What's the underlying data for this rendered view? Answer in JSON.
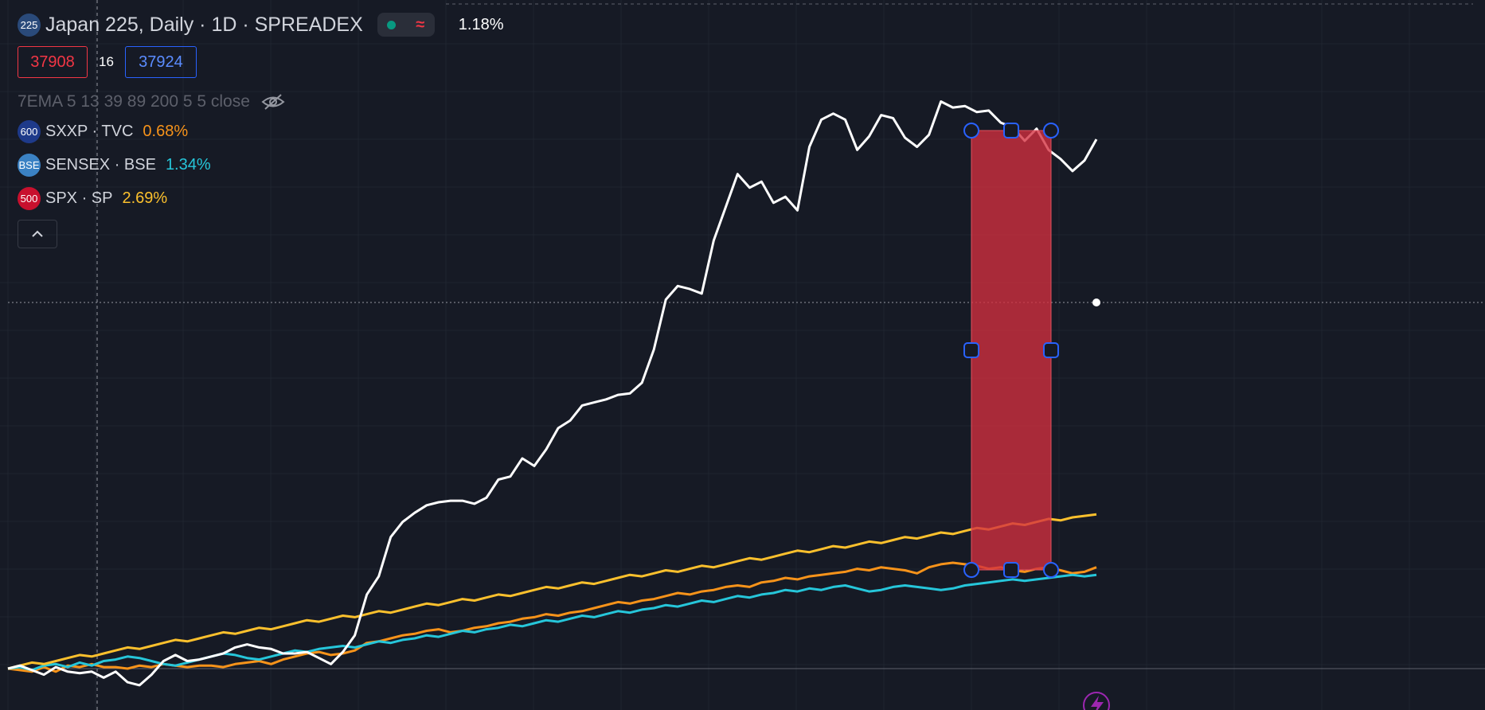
{
  "header": {
    "symbol_badge": "225",
    "title": "Japan 225, Daily · 1D · SPREADEX",
    "change": "1.18%",
    "bid": "37908",
    "spread": "16",
    "ask": "37924"
  },
  "indicator": {
    "label": "7EMA 5 13 39 89 200 5 5 close"
  },
  "comparisons": [
    {
      "badge": "600",
      "name": "SXXP · TVC",
      "change": "0.68%",
      "color": "#f7931a",
      "badge_color": "#1e3a8a"
    },
    {
      "badge": "BSE",
      "name": "SENSEX · BSE",
      "change": "1.34%",
      "color": "#26c6da",
      "badge_color": "#3b82c4"
    },
    {
      "badge": "500",
      "name": "SPX · SP",
      "change": "2.69%",
      "color": "#fbc02d",
      "badge_color": "#c8102e"
    }
  ],
  "colors": {
    "background": "#161a25",
    "main_series": "#ffffff",
    "highlight_rect": "#d4303f",
    "handle": "#2962ff",
    "grid": "#1f2430"
  },
  "icons": {
    "status_dot": "green-dot-icon",
    "wave": "approx-wave-icon",
    "hide": "eye-off-icon",
    "collapse": "chevron-up-icon",
    "lightning": "lightning-icon"
  },
  "chart_data": {
    "type": "line",
    "title": "Japan 225, Daily · 1D · SPREADEX",
    "x_count": 92,
    "series": [
      {
        "name": "Japan 225",
        "color": "#ffffff",
        "y": [
          0,
          2,
          -1,
          -4,
          1,
          -2,
          -3,
          -2,
          -6,
          -2,
          -9,
          -11,
          -4,
          5,
          9,
          5,
          6,
          8,
          10,
          14,
          16,
          14,
          13,
          10,
          10,
          11,
          7,
          3,
          11,
          22,
          49,
          61,
          87,
          97,
          103,
          108,
          110,
          111,
          111,
          109,
          113,
          125,
          127,
          139,
          134,
          145,
          159,
          164,
          174,
          176,
          178,
          181,
          182,
          189,
          211,
          244,
          253,
          251,
          248,
          283,
          305,
          327,
          318,
          322,
          308,
          312,
          303,
          345,
          363,
          367,
          363,
          343,
          352,
          366,
          364,
          351,
          345,
          353,
          375,
          371,
          372,
          368,
          369,
          361,
          358,
          349,
          357,
          343,
          337,
          329,
          336,
          350
        ]
      },
      {
        "name": "SXXP · TVC",
        "color": "#f7931a",
        "y": [
          0,
          -1,
          -2,
          1,
          -2,
          2,
          1,
          3,
          1,
          1,
          0,
          2,
          1,
          3,
          2,
          1,
          2,
          2,
          1,
          3,
          4,
          5,
          3,
          6,
          8,
          10,
          11,
          9,
          10,
          12,
          17,
          18,
          20,
          22,
          23,
          25,
          26,
          24,
          25,
          27,
          28,
          30,
          31,
          33,
          34,
          36,
          35,
          37,
          38,
          40,
          42,
          44,
          43,
          45,
          46,
          48,
          50,
          49,
          51,
          52,
          54,
          55,
          54,
          57,
          58,
          60,
          59,
          61,
          62,
          63,
          64,
          66,
          65,
          67,
          66,
          65,
          63,
          67,
          69,
          70,
          69,
          68,
          66,
          67,
          65,
          64,
          66,
          67,
          65,
          63,
          64,
          67
        ]
      },
      {
        "name": "SENSEX · BSE",
        "color": "#26c6da",
        "y": [
          0,
          1,
          -1,
          2,
          3,
          1,
          4,
          2,
          5,
          6,
          8,
          7,
          5,
          3,
          2,
          4,
          6,
          8,
          10,
          9,
          7,
          6,
          8,
          10,
          12,
          11,
          13,
          14,
          15,
          14,
          16,
          18,
          17,
          19,
          20,
          22,
          21,
          23,
          25,
          24,
          26,
          27,
          29,
          28,
          30,
          32,
          31,
          33,
          35,
          34,
          36,
          38,
          37,
          39,
          40,
          42,
          41,
          43,
          45,
          44,
          46,
          48,
          47,
          49,
          50,
          52,
          51,
          53,
          52,
          54,
          55,
          53,
          51,
          52,
          54,
          55,
          54,
          53,
          52,
          53,
          55,
          56,
          57,
          58,
          59,
          58,
          59,
          60,
          61,
          62,
          61,
          62
        ]
      },
      {
        "name": "SPX · SP",
        "color": "#fbc02d",
        "y": [
          0,
          2,
          4,
          3,
          5,
          7,
          9,
          8,
          10,
          12,
          14,
          13,
          15,
          17,
          19,
          18,
          20,
          22,
          24,
          23,
          25,
          27,
          26,
          28,
          30,
          32,
          31,
          33,
          35,
          34,
          36,
          38,
          37,
          39,
          41,
          43,
          42,
          44,
          46,
          45,
          47,
          49,
          48,
          50,
          52,
          54,
          53,
          55,
          57,
          56,
          58,
          60,
          62,
          61,
          63,
          65,
          64,
          66,
          68,
          67,
          69,
          71,
          73,
          72,
          74,
          76,
          78,
          77,
          79,
          81,
          80,
          82,
          84,
          83,
          85,
          87,
          86,
          88,
          90,
          89,
          91,
          93,
          92,
          94,
          96,
          95,
          97,
          99,
          98,
          100,
          101,
          102
        ]
      }
    ],
    "last_value_marker": "Japan 225",
    "annotation": "highlight rectangle with 8 handles",
    "grid": true
  }
}
